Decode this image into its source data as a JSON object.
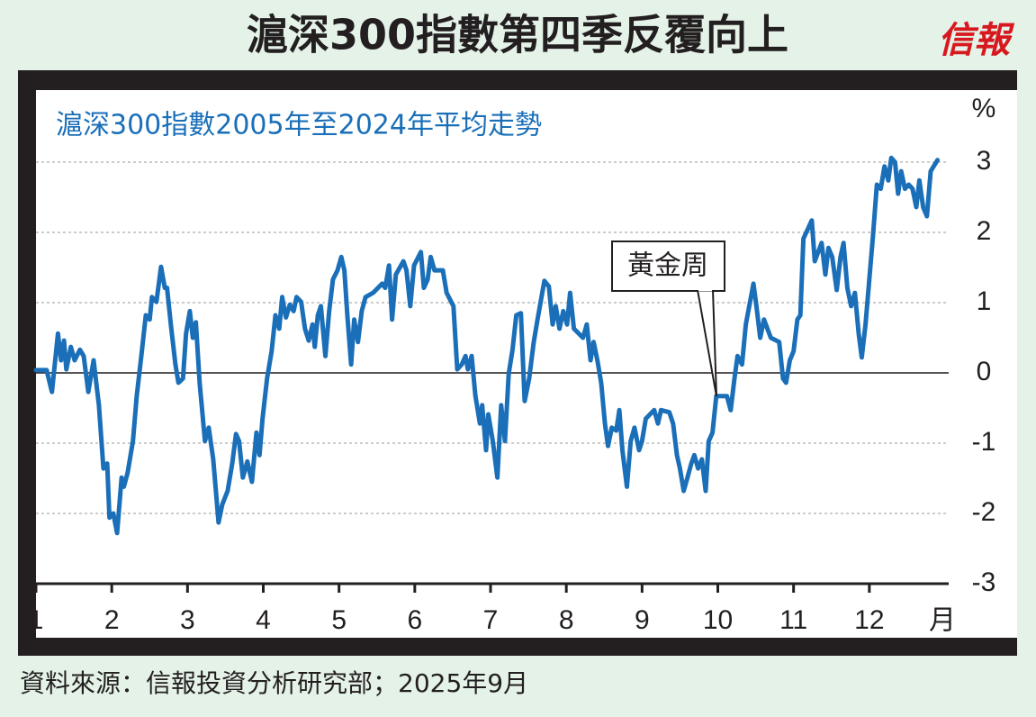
{
  "chart_data": {
    "type": "line",
    "title": "滬深300指數第四季反覆向上",
    "logo": "信報",
    "subtitle": "滬深300指數2005年至2024年平均走勢",
    "source": "資料來源：信報投資分析研究部；2025年9月",
    "annotation": "黃金周",
    "x_label": "月",
    "y_label": "%",
    "color": "#1a6fb8",
    "grid": true,
    "xlim": [
      1,
      13
    ],
    "xticks": [
      1,
      2,
      3,
      4,
      5,
      6,
      7,
      8,
      9,
      10,
      11,
      12
    ],
    "ylim": [
      -3,
      3
    ],
    "yticks": [
      3,
      2,
      1,
      0,
      -1,
      -2,
      -3
    ],
    "x": [
      1.0,
      1.14,
      1.21,
      1.29,
      1.33,
      1.37,
      1.4,
      1.46,
      1.51,
      1.58,
      1.63,
      1.69,
      1.76,
      1.83,
      1.89,
      1.94,
      1.97,
      2.02,
      2.07,
      2.13,
      2.16,
      2.21,
      2.28,
      2.33,
      2.39,
      2.45,
      2.5,
      2.53,
      2.59,
      2.65,
      2.7,
      2.73,
      2.78,
      2.84,
      2.88,
      2.94,
      2.98,
      3.03,
      3.07,
      3.11,
      3.16,
      3.23,
      3.28,
      3.34,
      3.41,
      3.46,
      3.53,
      3.59,
      3.64,
      3.68,
      3.73,
      3.79,
      3.85,
      3.91,
      3.95,
      3.99,
      4.05,
      4.11,
      4.16,
      4.21,
      4.25,
      4.3,
      4.35,
      4.4,
      4.44,
      4.5,
      4.55,
      4.6,
      4.65,
      4.68,
      4.72,
      4.76,
      4.82,
      4.87,
      4.92,
      4.98,
      5.03,
      5.07,
      5.11,
      5.16,
      5.2,
      5.25,
      5.3,
      5.35,
      5.45,
      5.57,
      5.61,
      5.66,
      5.7,
      5.75,
      5.85,
      5.89,
      5.94,
      5.99,
      6.08,
      6.12,
      6.17,
      6.21,
      6.26,
      6.37,
      6.42,
      6.51,
      6.56,
      6.62,
      6.67,
      6.7,
      6.75,
      6.8,
      6.86,
      6.89,
      6.94,
      6.97,
      7.03,
      7.09,
      7.14,
      7.19,
      7.24,
      7.29,
      7.34,
      7.4,
      7.45,
      7.51,
      7.57,
      7.62,
      7.71,
      7.77,
      7.82,
      7.86,
      7.91,
      7.96,
      8.01,
      8.05,
      8.1,
      8.22,
      8.27,
      8.32,
      8.36,
      8.41,
      8.46,
      8.51,
      8.55,
      8.6,
      8.66,
      8.7,
      8.74,
      8.8,
      8.85,
      8.9,
      8.96,
      9.0,
      9.05,
      9.16,
      9.21,
      9.25,
      9.36,
      9.41,
      9.46,
      9.5,
      9.55,
      9.6,
      9.65,
      9.69,
      9.74,
      9.79,
      9.84,
      9.88,
      9.93,
      9.98,
      10.12,
      10.17,
      10.22,
      10.26,
      10.32,
      10.37,
      10.47,
      10.51,
      10.56,
      10.61,
      10.7,
      10.81,
      10.86,
      10.9,
      10.95,
      11.0,
      11.05,
      11.09,
      11.13,
      11.24,
      11.28,
      11.37,
      11.42,
      11.46,
      11.51,
      11.57,
      11.62,
      11.66,
      11.71,
      11.76,
      11.81,
      11.86,
      11.9,
      11.95,
      12.0,
      12.05,
      12.1,
      12.15,
      12.2,
      12.25,
      12.29,
      12.34,
      12.38,
      12.42,
      12.47,
      12.52,
      12.57,
      12.62,
      12.66,
      12.71,
      12.76,
      12.81,
      12.9
    ],
    "values": [
      0.04,
      0.04,
      -0.27,
      0.56,
      0.18,
      0.46,
      0.05,
      0.37,
      0.18,
      0.33,
      0.24,
      -0.27,
      0.18,
      -0.46,
      -1.36,
      -1.29,
      -2.06,
      -2.0,
      -2.28,
      -1.49,
      -1.62,
      -1.42,
      -0.97,
      -0.33,
      0.24,
      0.82,
      0.76,
      1.08,
      1.01,
      1.51,
      1.21,
      1.21,
      0.69,
      0.12,
      -0.14,
      -0.08,
      0.56,
      0.88,
      0.5,
      0.72,
      -0.14,
      -0.97,
      -0.78,
      -1.23,
      -2.13,
      -1.87,
      -1.68,
      -1.29,
      -0.87,
      -0.97,
      -1.49,
      -1.26,
      -1.55,
      -0.85,
      -1.17,
      -0.65,
      -0.08,
      0.31,
      0.82,
      0.63,
      1.08,
      0.79,
      0.97,
      0.88,
      1.08,
      1.01,
      0.63,
      0.46,
      0.69,
      0.37,
      0.82,
      0.95,
      0.24,
      0.88,
      1.33,
      1.46,
      1.65,
      1.46,
      0.82,
      0.12,
      0.76,
      0.44,
      0.88,
      1.08,
      1.14,
      1.27,
      1.21,
      1.53,
      0.76,
      1.4,
      1.59,
      1.46,
      0.95,
      1.53,
      1.72,
      1.21,
      1.33,
      1.65,
      1.46,
      1.46,
      1.14,
      0.95,
      0.05,
      0.12,
      0.24,
      0.05,
      0.24,
      -0.33,
      -0.72,
      -0.46,
      -1.1,
      -0.59,
      -0.97,
      -1.49,
      -0.46,
      -0.97,
      -0.01,
      0.33,
      0.82,
      0.85,
      -0.4,
      -0.08,
      0.44,
      0.76,
      1.31,
      1.23,
      0.69,
      0.95,
      0.63,
      0.88,
      0.69,
      1.14,
      0.63,
      0.5,
      0.69,
      0.18,
      0.44,
      0.18,
      -0.14,
      -0.72,
      -1.04,
      -0.78,
      -0.82,
      -0.53,
      -1.1,
      -1.62,
      -0.97,
      -0.78,
      -1.1,
      -0.97,
      -0.65,
      -0.53,
      -0.72,
      -0.53,
      -0.56,
      -0.72,
      -1.17,
      -1.36,
      -1.68,
      -1.49,
      -1.29,
      -1.17,
      -1.36,
      -1.23,
      -1.68,
      -0.97,
      -0.85,
      -0.33,
      -0.33,
      -0.53,
      -0.08,
      0.24,
      0.12,
      0.69,
      1.27,
      0.95,
      0.5,
      0.76,
      0.5,
      0.44,
      -0.08,
      -0.14,
      0.18,
      0.31,
      0.76,
      0.82,
      1.91,
      2.17,
      1.59,
      1.85,
      1.4,
      1.78,
      1.65,
      1.18,
      1.65,
      1.85,
      1.21,
      0.95,
      1.14,
      0.56,
      0.22,
      0.69,
      1.33,
      1.97,
      2.68,
      2.62,
      2.94,
      2.74,
      3.06,
      3.0,
      2.55,
      2.87,
      2.62,
      2.68,
      2.62,
      2.36,
      2.74,
      2.36,
      2.23,
      2.87,
      3.03
    ]
  }
}
